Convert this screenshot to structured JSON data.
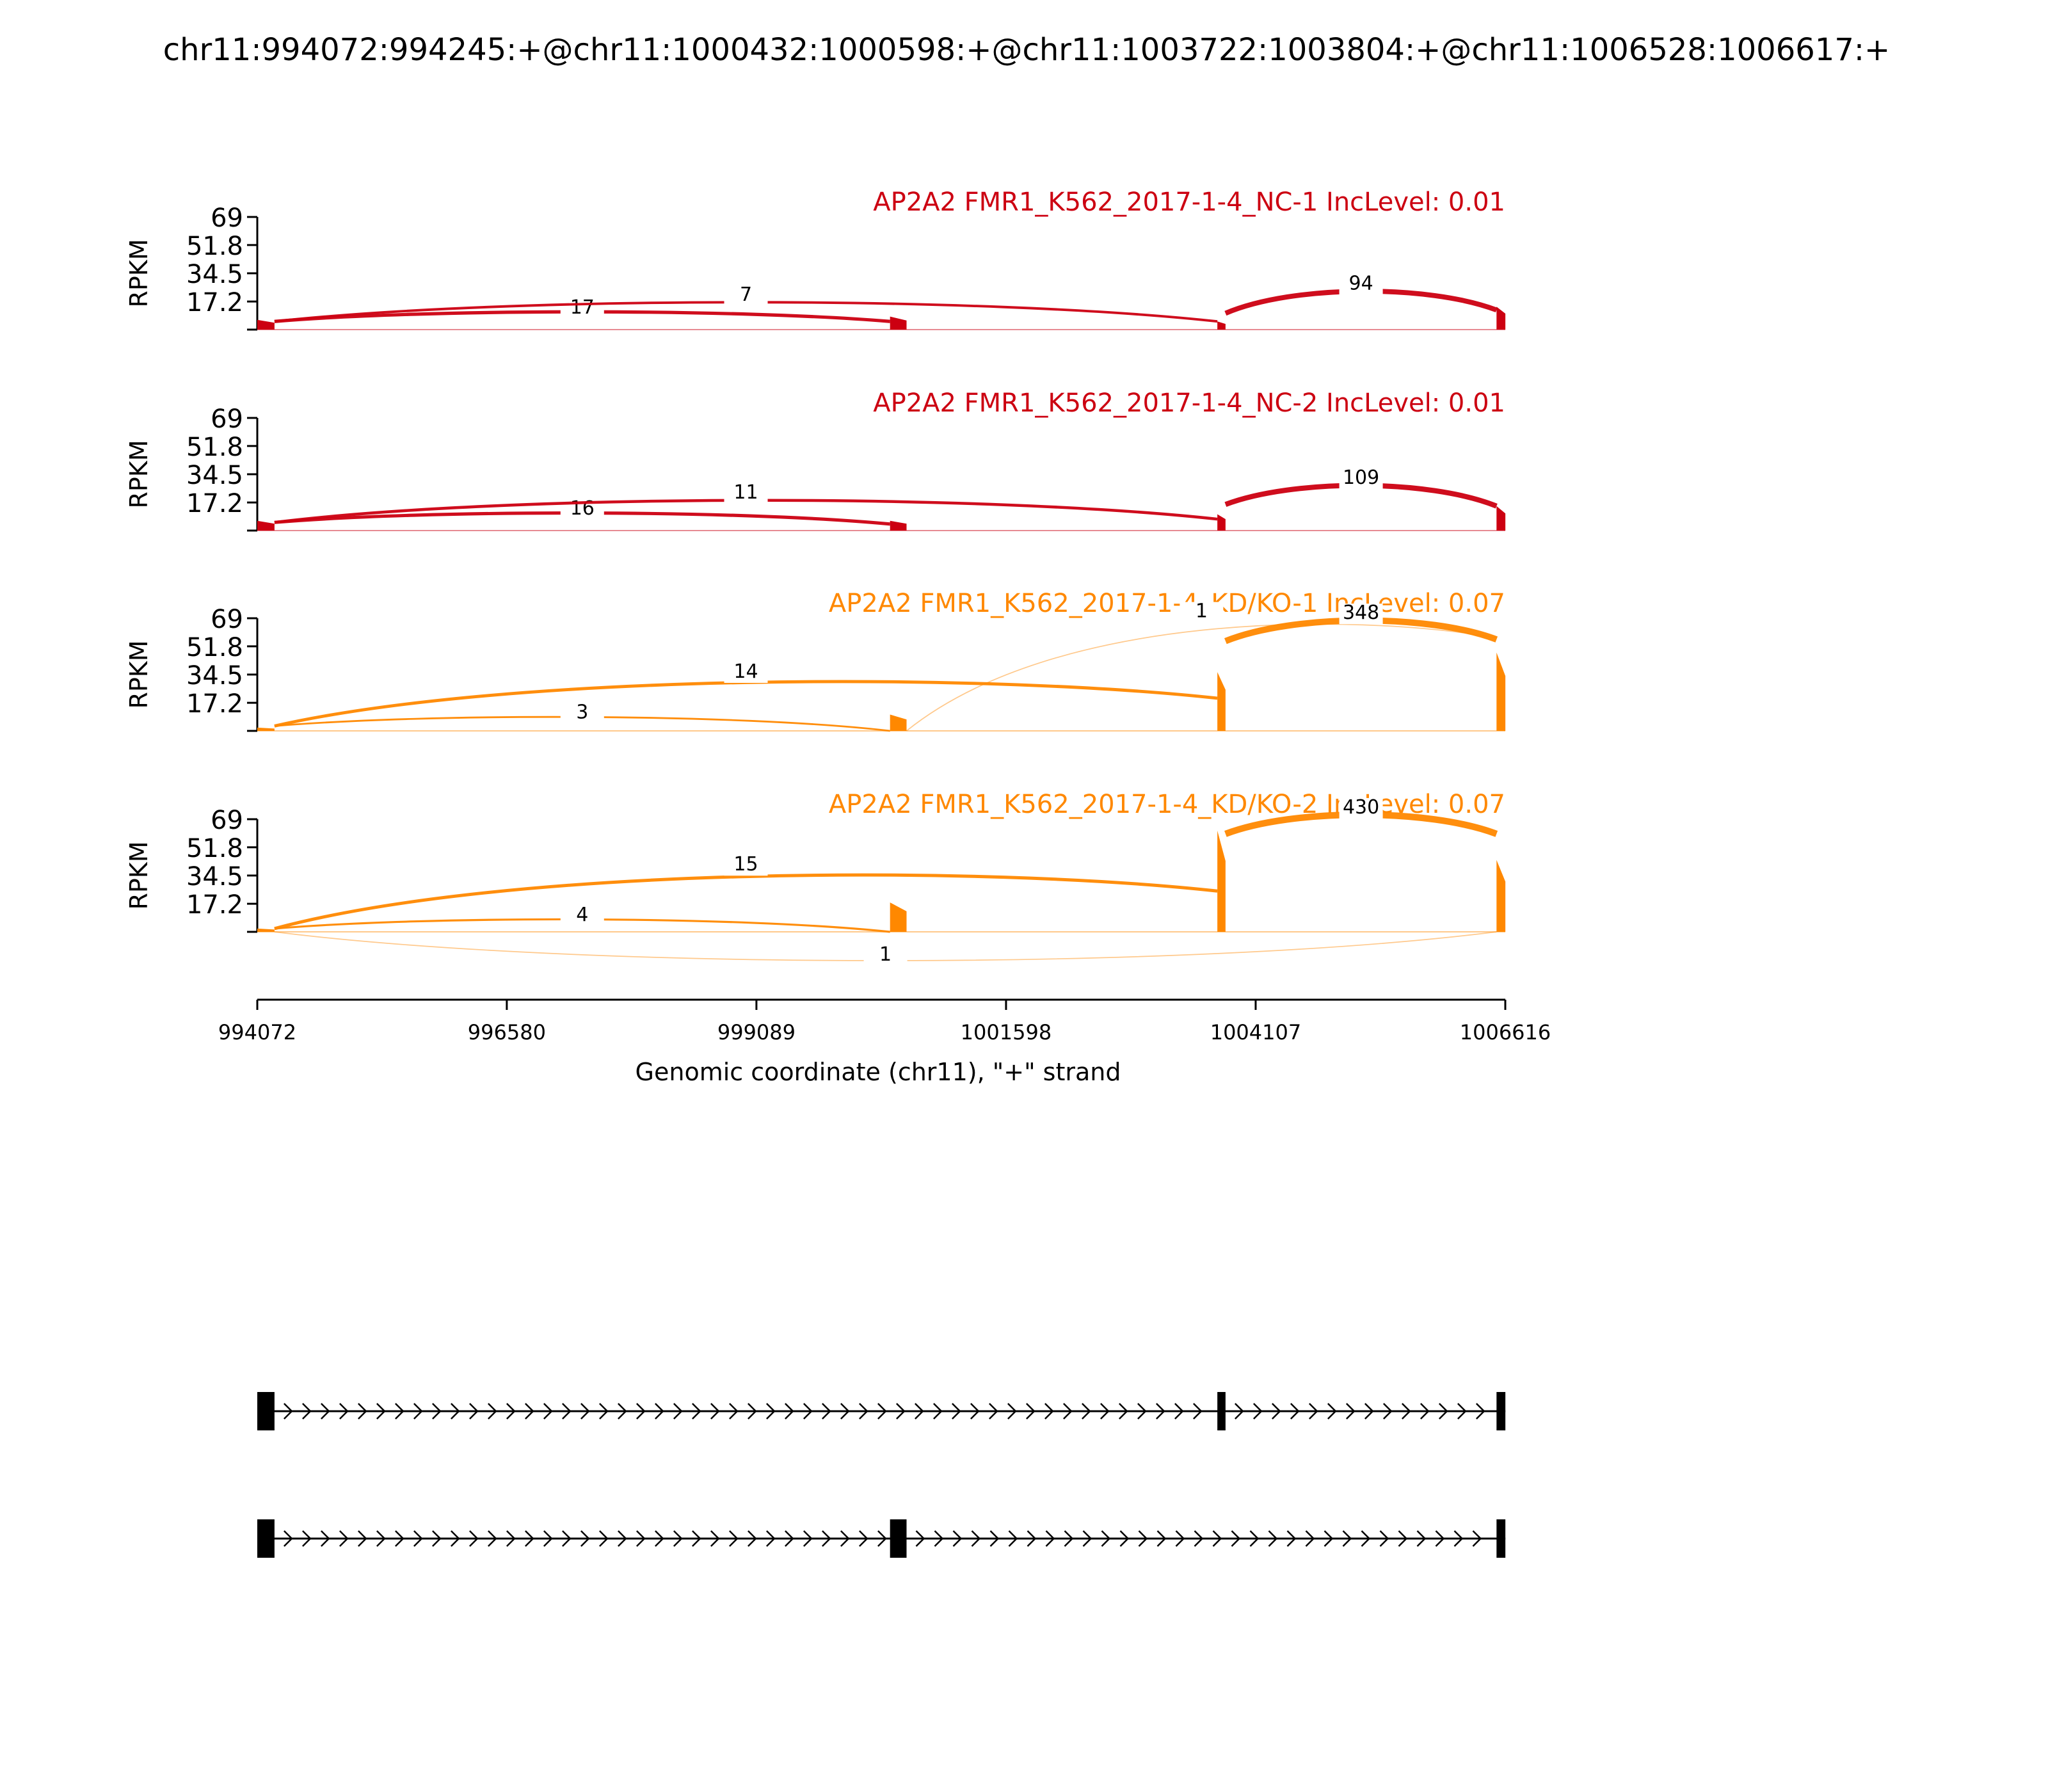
{
  "chart_data": {
    "type": "sashimi",
    "title": "chr11:994072:994245:+@chr11:1000432:1000598:+@chr11:1003722:1003804:+@chr11:1006528:1006617:+",
    "xlabel": "Genomic coordinate (chr11), \"+\" strand",
    "ylabel": "RPKM",
    "xlim": [
      994072,
      1006616
    ],
    "ylim": [
      0,
      69
    ],
    "x_ticks": [
      "994072",
      "996580",
      "999089",
      "1001598",
      "1004107",
      "1006616"
    ],
    "y_ticks": [
      "17.2",
      "34.5",
      "51.8",
      "69"
    ],
    "exons": [
      {
        "start": 994072,
        "end": 994245
      },
      {
        "start": 1000432,
        "end": 1000598
      },
      {
        "start": 1003722,
        "end": 1003804
      },
      {
        "start": 1006528,
        "end": 1006617
      }
    ],
    "tracks": [
      {
        "label": "AP2A2 FMR1_K562_2017-1-4_NC-1 IncLevel: 0.01",
        "color": "#cc0011",
        "exon_peaks": [
          6,
          8,
          5,
          14
        ],
        "junctions": [
          {
            "from": 994245,
            "to": 1000432,
            "count": "17",
            "side": "below",
            "start_y": 5,
            "end_y": 5
          },
          {
            "from": 994245,
            "to": 1003722,
            "count": "7",
            "side": "above",
            "start_y": 5,
            "end_y": 5
          },
          {
            "from": 1003804,
            "to": 1006528,
            "count": "94",
            "side": "above",
            "start_y": 10,
            "end_y": 12
          }
        ]
      },
      {
        "label": "AP2A2 FMR1_K562_2017-1-4_NC-2 IncLevel: 0.01",
        "color": "#cc0011",
        "exon_peaks": [
          6,
          6,
          10,
          15
        ],
        "junctions": [
          {
            "from": 994245,
            "to": 1000432,
            "count": "16",
            "side": "below",
            "start_y": 5,
            "end_y": 4
          },
          {
            "from": 994245,
            "to": 1003722,
            "count": "11",
            "side": "above",
            "start_y": 5,
            "end_y": 7
          },
          {
            "from": 1003804,
            "to": 1006528,
            "count": "109",
            "side": "above",
            "start_y": 16,
            "end_y": 15
          }
        ]
      },
      {
        "label": "AP2A2 FMR1_K562_2017-1-4_KD/KO-1 IncLevel: 0.07",
        "color": "#ff8800",
        "exon_peaks": [
          2,
          10,
          36,
          48
        ],
        "junctions": [
          {
            "from": 994245,
            "to": 1000432,
            "count": "3",
            "side": "below",
            "start_y": 3,
            "end_y": 0
          },
          {
            "from": 994245,
            "to": 1003722,
            "count": "14",
            "side": "above",
            "start_y": 3,
            "end_y": 20
          },
          {
            "from": 1000598,
            "to": 1006528,
            "count": "1",
            "side": "above",
            "start_y": 0,
            "end_y": 57
          },
          {
            "from": 1003804,
            "to": 1006528,
            "count": "348",
            "side": "above",
            "start_y": 55,
            "end_y": 56
          }
        ]
      },
      {
        "label": "AP2A2 FMR1_K562_2017-1-4_KD/KO-2 IncLevel: 0.07",
        "color": "#ff8800",
        "exon_peaks": [
          2,
          18,
          62,
          44
        ],
        "junctions": [
          {
            "from": 994245,
            "to": 1000432,
            "count": "4",
            "side": "below",
            "start_y": 2,
            "end_y": 0
          },
          {
            "from": 994245,
            "to": 1003722,
            "count": "15",
            "side": "above",
            "start_y": 2,
            "end_y": 25
          },
          {
            "from": 994245,
            "to": 1006528,
            "count": "1",
            "side": "below-axis",
            "start_y": 0,
            "end_y": 0
          },
          {
            "from": 1003804,
            "to": 1006528,
            "count": "430",
            "side": "above",
            "start_y": 60,
            "end_y": 60
          }
        ]
      }
    ],
    "isoforms": [
      {
        "exons": [
          0,
          2,
          3
        ]
      },
      {
        "exons": [
          0,
          1,
          3
        ]
      }
    ]
  }
}
